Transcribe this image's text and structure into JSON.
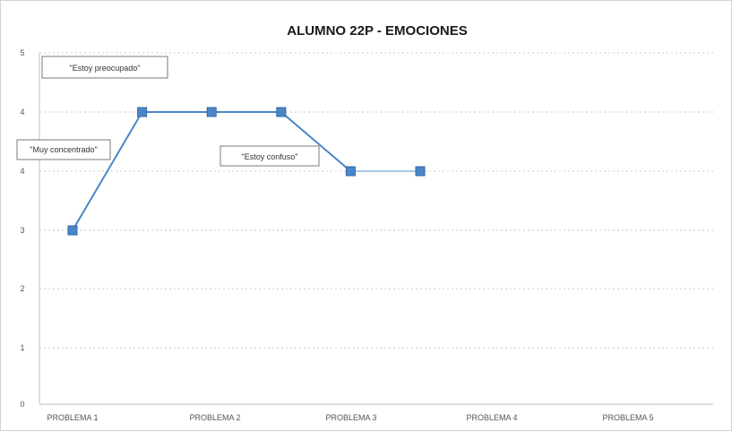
{
  "chart_data": {
    "type": "line",
    "title": "ALUMNO 22P - EMOCIONES",
    "xlabel": "",
    "ylabel": "",
    "ylim": [
      0,
      5
    ],
    "grid": true,
    "y_ticks": [
      "0",
      "1",
      "2",
      "3",
      "4",
      "4",
      "5"
    ],
    "x_tick_labels": [
      "PROBLEMA 1",
      "PROBLEMA 2",
      "PROBLEMA 3",
      "PROBLEMA 4",
      "PROBLEMA 5"
    ],
    "x": [
      1,
      2,
      3,
      4,
      5,
      6
    ],
    "series": [
      {
        "values": [
          3,
          4,
          4,
          4,
          3.5,
          3.5
        ],
        "color": "#4a86c8"
      }
    ],
    "annotations": [
      {
        "text": "\"Estoy preocupado\""
      },
      {
        "text": "\"Muy concentrado\""
      },
      {
        "text": "\"Estoy confuso\""
      }
    ]
  }
}
